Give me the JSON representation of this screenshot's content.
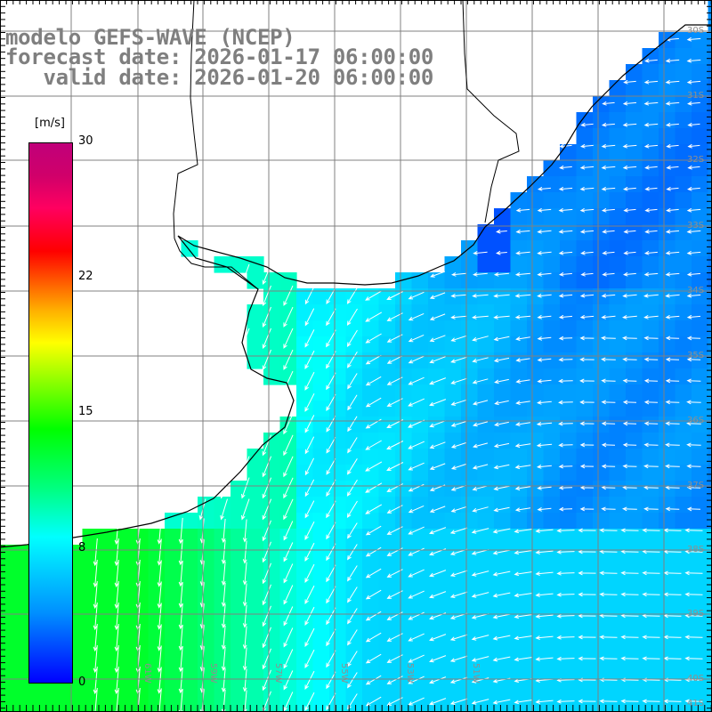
{
  "title": {
    "line1": "modelo GEFS-WAVE (NCEP)",
    "line2": "forecast date: 2026-01-17 06:00:00",
    "line3": "   valid date: 2026-01-20 06:00:00"
  },
  "colorbar": {
    "unit": "[m/s]",
    "ticks": [
      {
        "label": "30",
        "value": 30
      },
      {
        "label": "22",
        "value": 22
      },
      {
        "label": "15",
        "value": 15
      },
      {
        "label": "8",
        "value": 8
      },
      {
        "label": "0",
        "value": 0
      }
    ],
    "min": 0,
    "max": 30
  },
  "map": {
    "lon_labels": [
      "61W",
      "59W",
      "57W",
      "55W",
      "53W",
      "51W"
    ],
    "lat_labels": [
      "30S",
      "31S",
      "32S",
      "33S",
      "34S",
      "35S",
      "36S",
      "37S",
      "38S",
      "39S",
      "40S",
      "41S"
    ],
    "land_color": "#ffffff",
    "arrow_color": "#ffffff",
    "grid_color": "#808080"
  }
}
